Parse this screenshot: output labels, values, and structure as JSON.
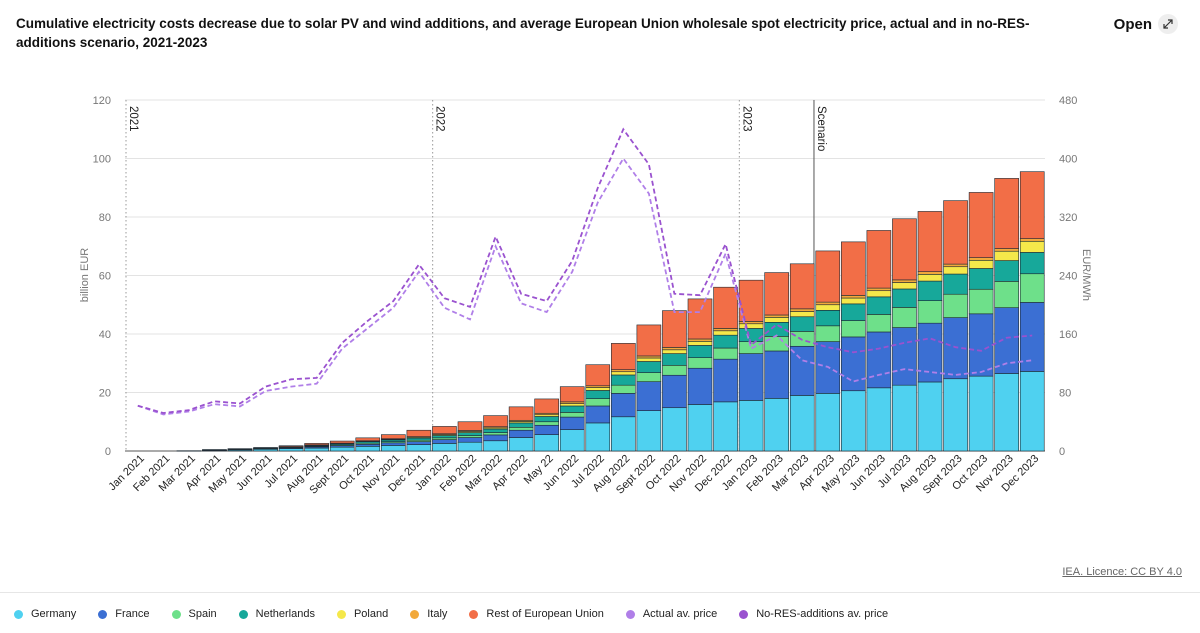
{
  "title": "Cumulative electricity costs decrease due to solar PV and wind additions, and average European Union wholesale spot electricity price, actual and in no-RES-additions scenario, 2021-2023",
  "open_label": "Open",
  "licence_label": "IEA. Licence: CC BY 4.0",
  "chart_data": {
    "type": "stacked-bar+line",
    "title": "Cumulative electricity costs decrease due to solar PV and wind additions, and average European Union wholesale spot electricity price, actual and in no-RES-additions scenario, 2021-2023",
    "ylabel_left": "billion EUR",
    "ylabel_right": "EUR/MWh",
    "ylim_left": [
      0,
      120
    ],
    "ylim_right": [
      0,
      480
    ],
    "yticks_left": [
      "0",
      "20",
      "40",
      "60",
      "80",
      "100",
      "120"
    ],
    "yticks_right": [
      "0",
      "80",
      "160",
      "240",
      "320",
      "400",
      "480"
    ],
    "categories": [
      "Jan 2021",
      "Feb 2021",
      "Mar 2021",
      "Apr 2021",
      "May 2021",
      "Jun 2021",
      "Jul 2021",
      "Aug 2021",
      "Sept 2021",
      "Oct 2021",
      "Nov 2021",
      "Dec 2021",
      "Jan 2022",
      "Feb 2022",
      "Mar 2022",
      "Apr 2022",
      "May 22",
      "Jun 2022",
      "Jul 2022",
      "Aug 2022",
      "Sept 2022",
      "Oct 2022",
      "Nov 2022",
      "Dec 2022",
      "Jan 2023",
      "Feb 2023",
      "Mar 2023",
      "Apr 2023",
      "May 2023",
      "Jun 2023",
      "Jul 2023",
      "Aug 2023",
      "Sept 2023",
      "Oct 2023",
      "Nov 2023",
      "Dec 2023"
    ],
    "annotations": [
      {
        "label": "2021",
        "at": "Jan 2021",
        "line": "dotted"
      },
      {
        "label": "2022",
        "at": "Jan 2022",
        "line": "dotted"
      },
      {
        "label": "2023",
        "at": "Jan 2023",
        "line": "dotted"
      },
      {
        "label": "Scenario",
        "at": "Apr 2023",
        "line": "solid"
      }
    ],
    "bar_series": [
      {
        "name": "Germany",
        "color": "#4fd1f0",
        "values": [
          0,
          0,
          0.1,
          0.2,
          0.4,
          0.6,
          0.8,
          1.0,
          1.3,
          1.6,
          1.9,
          2.2,
          2.6,
          3.0,
          3.5,
          4.6,
          5.6,
          7.3,
          9.6,
          11.7,
          13.8,
          14.8,
          15.9,
          16.8,
          17.3,
          18.0,
          19.0,
          19.7,
          20.6,
          21.6,
          22.5,
          23.6,
          24.7,
          25.6,
          26.5,
          27.2
        ]
      },
      {
        "name": "France",
        "color": "#3b6fd3",
        "values": [
          0,
          0,
          0,
          0.1,
          0.1,
          0.2,
          0.3,
          0.4,
          0.5,
          0.7,
          0.9,
          1.0,
          1.3,
          1.6,
          2.0,
          2.5,
          3.2,
          4.3,
          5.8,
          8.0,
          9.9,
          11.1,
          12.4,
          14.6,
          16.0,
          16.2,
          16.8,
          17.7,
          18.4,
          19.1,
          19.7,
          20.1,
          20.9,
          21.3,
          22.5,
          23.6
        ]
      },
      {
        "name": "Spain",
        "color": "#6ee08a",
        "values": [
          0,
          0,
          0,
          0,
          0.1,
          0.1,
          0.1,
          0.2,
          0.3,
          0.4,
          0.4,
          0.5,
          0.6,
          0.7,
          0.8,
          1.0,
          1.2,
          1.6,
          2.5,
          2.8,
          3.1,
          3.4,
          3.6,
          3.8,
          4.1,
          5.0,
          5.1,
          5.4,
          5.6,
          6.0,
          6.9,
          7.7,
          8.0,
          8.4,
          9.0,
          9.8
        ]
      },
      {
        "name": "Netherlands",
        "color": "#17a89a",
        "values": [
          0,
          0,
          0,
          0.1,
          0.1,
          0.1,
          0.2,
          0.3,
          0.4,
          0.5,
          0.6,
          0.7,
          0.8,
          1.0,
          1.2,
          1.5,
          1.8,
          2.2,
          2.8,
          3.5,
          3.8,
          4.0,
          4.2,
          4.4,
          4.5,
          4.8,
          5.0,
          5.3,
          5.7,
          6.0,
          6.3,
          6.7,
          6.9,
          7.1,
          7.1,
          7.3
        ]
      },
      {
        "name": "Poland",
        "color": "#f5e84a",
        "values": [
          0,
          0,
          0,
          0,
          0,
          0,
          0.1,
          0.1,
          0.1,
          0.2,
          0.2,
          0.3,
          0.3,
          0.4,
          0.4,
          0.5,
          0.6,
          0.8,
          1.0,
          1.1,
          1.2,
          1.3,
          1.4,
          1.5,
          1.6,
          1.7,
          1.8,
          1.9,
          2.0,
          2.1,
          2.2,
          2.3,
          2.5,
          2.8,
          3.2,
          3.8
        ]
      },
      {
        "name": "Italy",
        "color": "#f2a93b",
        "values": [
          0,
          0,
          0,
          0,
          0,
          0,
          0,
          0.1,
          0.1,
          0.1,
          0.2,
          0.2,
          0.3,
          0.3,
          0.4,
          0.4,
          0.5,
          0.6,
          0.6,
          0.7,
          0.7,
          0.8,
          0.8,
          0.8,
          0.8,
          0.8,
          0.9,
          0.9,
          0.9,
          0.9,
          0.9,
          0.9,
          0.9,
          0.9,
          0.9,
          0.9
        ]
      },
      {
        "name": "Rest of European Union",
        "color": "#f26e47",
        "values": [
          0,
          0,
          0,
          0.1,
          0.1,
          0.2,
          0.3,
          0.5,
          0.7,
          1.0,
          1.4,
          2.2,
          2.5,
          3.0,
          3.8,
          4.6,
          4.9,
          5.2,
          7.2,
          9.0,
          10.6,
          12.6,
          13.7,
          14.1,
          14.1,
          14.5,
          15.4,
          17.5,
          18.3,
          19.7,
          20.9,
          20.6,
          21.7,
          22.3,
          24.0,
          22.9
        ]
      }
    ],
    "line_series": [
      {
        "name": "Actual av. price",
        "color": "#b07fe8",
        "axis": "right",
        "values": [
          62,
          50,
          54,
          64,
          61,
          82,
          88,
          92,
          140,
          168,
          196,
          245,
          196,
          180,
          280,
          202,
          190,
          245,
          340,
          400,
          352,
          190,
          190,
          270,
          140,
          158,
          124,
          115,
          95,
          104,
          112,
          108,
          104,
          108,
          120,
          124
        ]
      },
      {
        "name": "No-RES-additions av. price",
        "color": "#9a52cf",
        "axis": "right",
        "values": [
          62,
          52,
          56,
          68,
          65,
          88,
          98,
          100,
          148,
          178,
          205,
          255,
          209,
          197,
          293,
          215,
          205,
          260,
          360,
          440,
          392,
          215,
          213,
          283,
          145,
          173,
          152,
          142,
          135,
          140,
          148,
          154,
          142,
          137,
          155,
          158
        ]
      }
    ]
  },
  "legend": [
    {
      "label": "Germany",
      "color": "#4fd1f0"
    },
    {
      "label": "France",
      "color": "#3b6fd3"
    },
    {
      "label": "Spain",
      "color": "#6ee08a"
    },
    {
      "label": "Netherlands",
      "color": "#17a89a"
    },
    {
      "label": "Poland",
      "color": "#f5e84a"
    },
    {
      "label": "Italy",
      "color": "#f2a93b"
    },
    {
      "label": "Rest of European Union",
      "color": "#f26e47"
    },
    {
      "label": "Actual av. price",
      "color": "#b07fe8"
    },
    {
      "label": "No-RES-additions av. price",
      "color": "#9a52cf"
    }
  ]
}
